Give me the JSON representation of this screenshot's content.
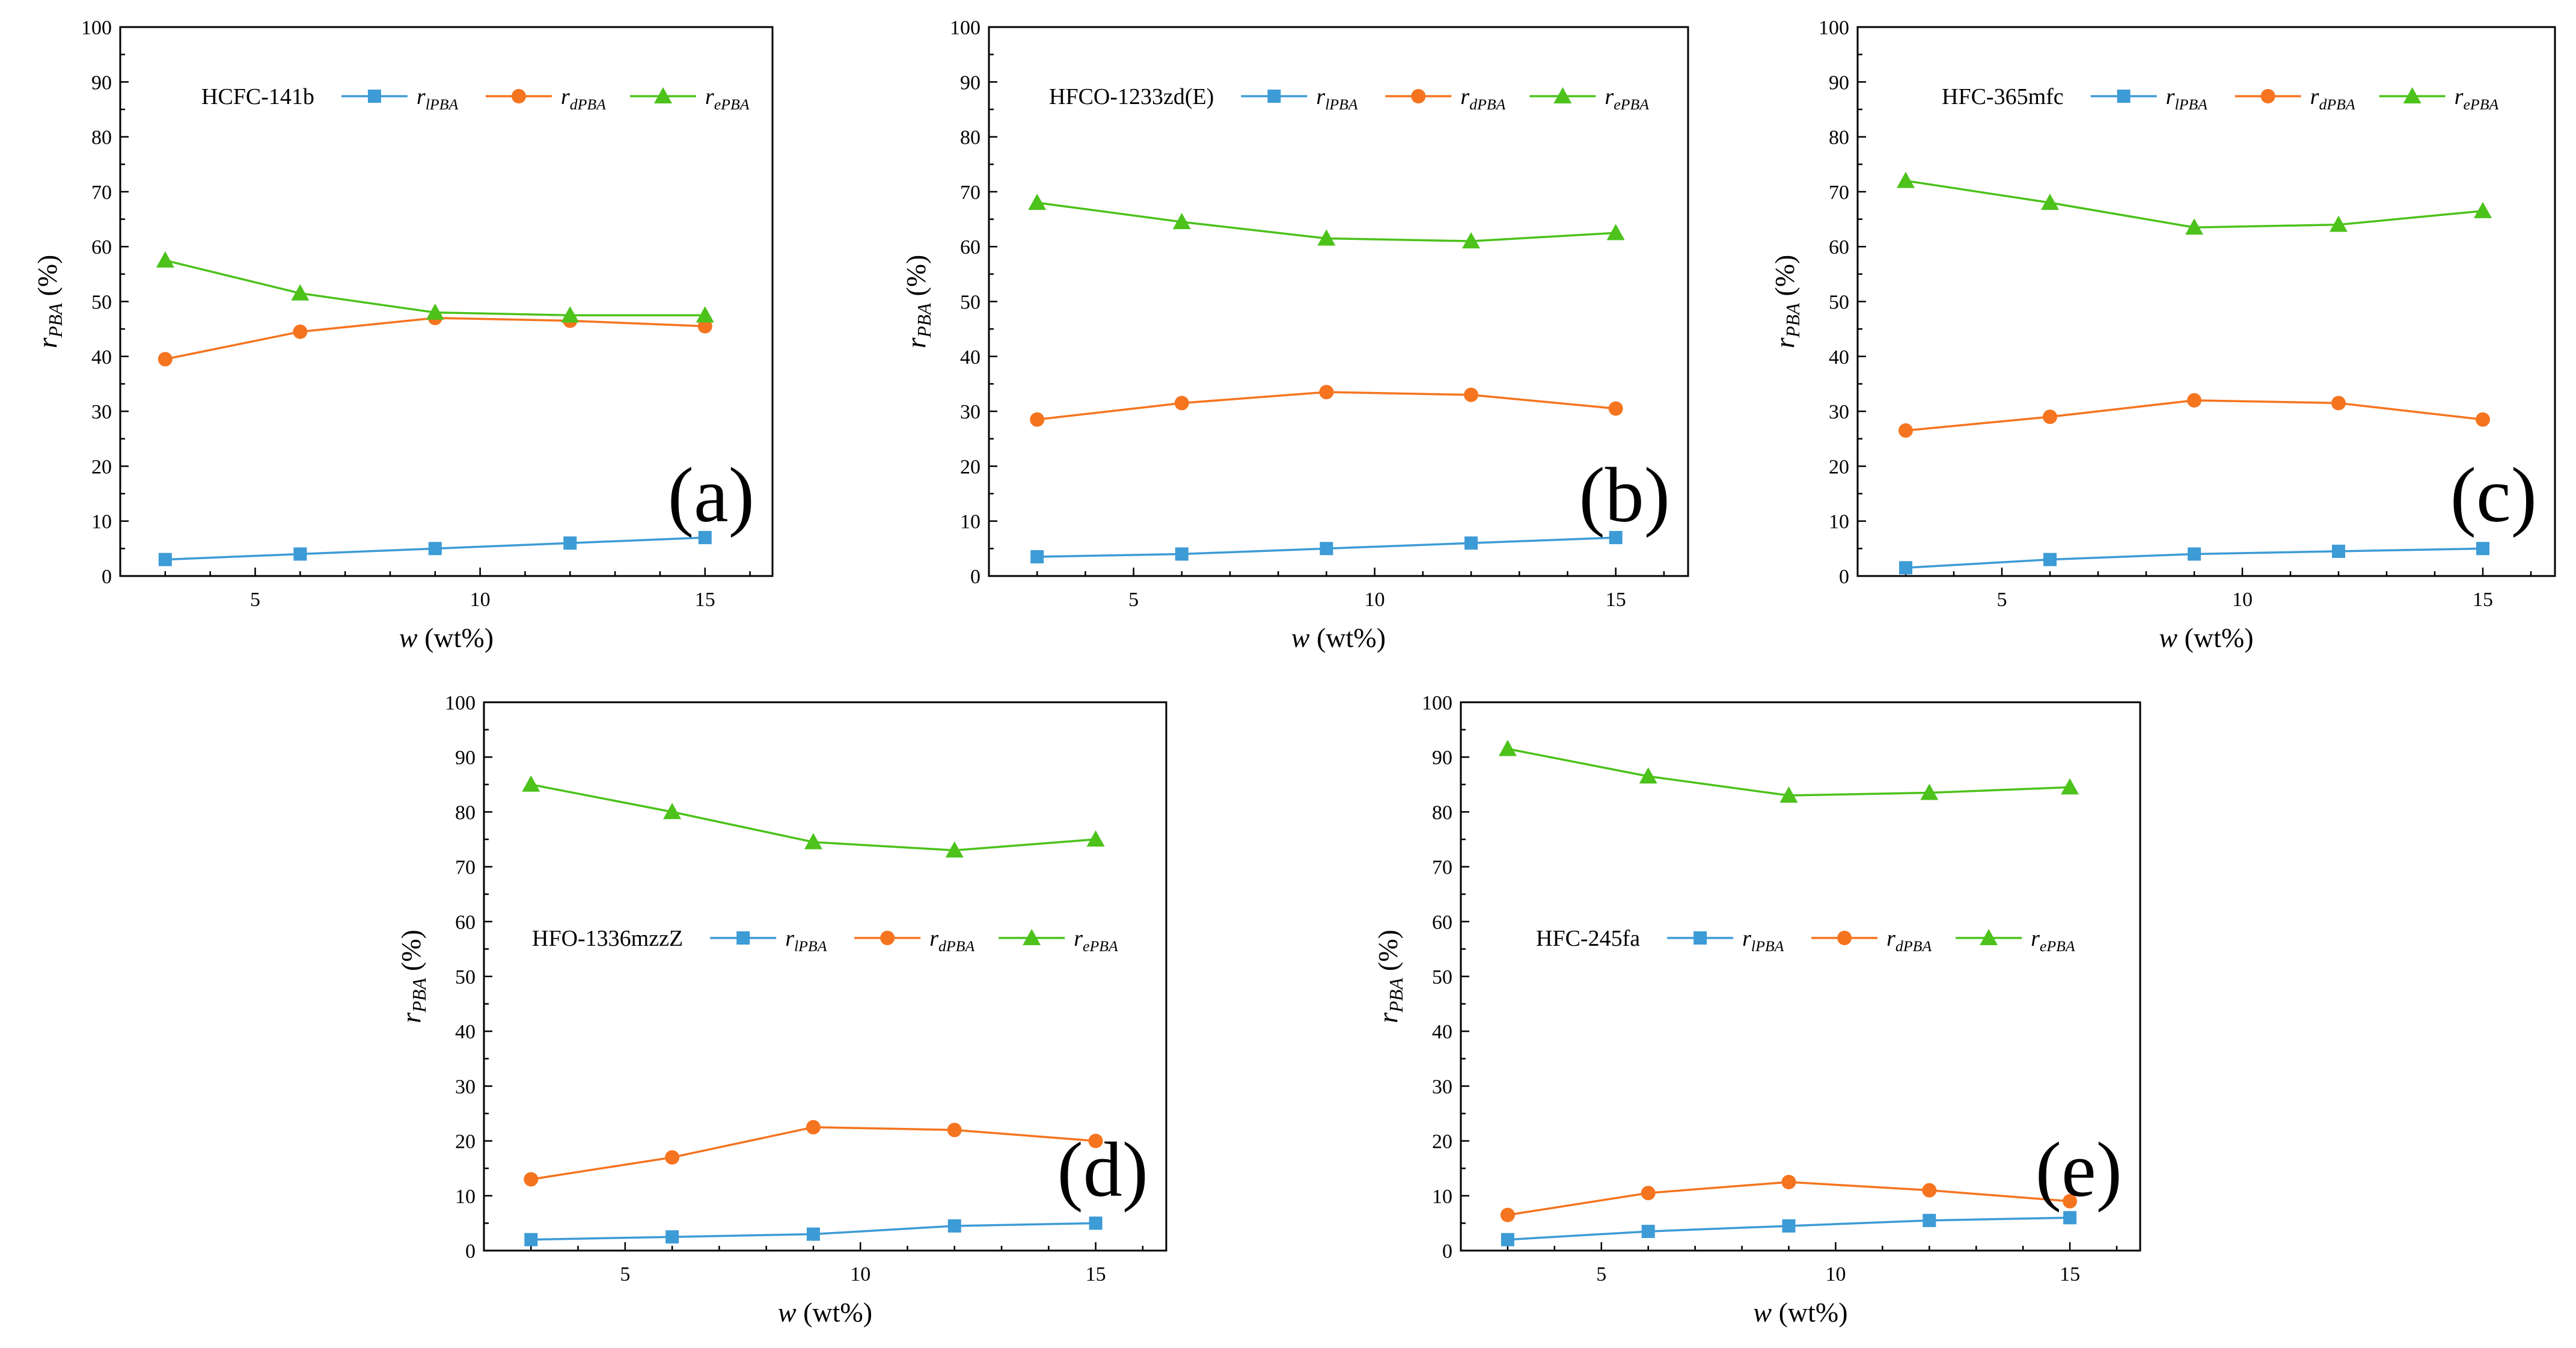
{
  "colors": {
    "l": "#3d9bd6",
    "d": "#f5741f",
    "e": "#4cc21b"
  },
  "legend_keys": {
    "l": {
      "var": "r",
      "sub": "lPBA"
    },
    "d": {
      "var": "r",
      "sub": "dPBA"
    },
    "e": {
      "var": "r",
      "sub": "ePBA"
    }
  },
  "chart_data": [
    {
      "type": "line",
      "panel_letter": "(a)",
      "legend_title": "HCFC-141b",
      "xlabel": {
        "var": "w",
        "unit": " (wt%)"
      },
      "ylabel": {
        "var": "r",
        "sub": "PBA",
        "unit": " (%)"
      },
      "xlim": [
        2,
        16.5
      ],
      "ylim": [
        0,
        100
      ],
      "xticks": [
        5,
        10,
        15
      ],
      "yticks": [
        0,
        10,
        20,
        30,
        40,
        50,
        60,
        70,
        80,
        90,
        100
      ],
      "x": [
        3,
        6,
        9,
        12,
        15
      ],
      "series": [
        {
          "key": "l",
          "marker": "square",
          "values": [
            3,
            4,
            5,
            6,
            7
          ]
        },
        {
          "key": "d",
          "marker": "circle",
          "values": [
            39.5,
            44.5,
            47,
            46.5,
            45.5
          ]
        },
        {
          "key": "e",
          "marker": "triangle",
          "values": [
            57.5,
            51.5,
            48,
            47.5,
            47.5
          ]
        }
      ]
    },
    {
      "type": "line",
      "panel_letter": "(b)",
      "legend_title": "HFCO-1233zd(E)",
      "xlabel": {
        "var": "w",
        "unit": " (wt%)"
      },
      "ylabel": {
        "var": "r",
        "sub": "PBA",
        "unit": " (%)"
      },
      "xlim": [
        2,
        16.5
      ],
      "ylim": [
        0,
        100
      ],
      "xticks": [
        5,
        10,
        15
      ],
      "yticks": [
        0,
        10,
        20,
        30,
        40,
        50,
        60,
        70,
        80,
        90,
        100
      ],
      "x": [
        3,
        6,
        9,
        12,
        15
      ],
      "series": [
        {
          "key": "l",
          "marker": "square",
          "values": [
            3.5,
            4,
            5,
            6,
            7
          ]
        },
        {
          "key": "d",
          "marker": "circle",
          "values": [
            28.5,
            31.5,
            33.5,
            33,
            30.5
          ]
        },
        {
          "key": "e",
          "marker": "triangle",
          "values": [
            68,
            64.5,
            61.5,
            61,
            62.5
          ]
        }
      ]
    },
    {
      "type": "line",
      "panel_letter": "(c)",
      "legend_title": "HFC-365mfc",
      "xlabel": {
        "var": "w",
        "unit": " (wt%)"
      },
      "ylabel": {
        "var": "r",
        "sub": "PBA",
        "unit": " (%)"
      },
      "xlim": [
        2,
        16.5
      ],
      "ylim": [
        0,
        100
      ],
      "xticks": [
        5,
        10,
        15
      ],
      "yticks": [
        0,
        10,
        20,
        30,
        40,
        50,
        60,
        70,
        80,
        90,
        100
      ],
      "x": [
        3,
        6,
        9,
        12,
        15
      ],
      "series": [
        {
          "key": "l",
          "marker": "square",
          "values": [
            1.5,
            3,
            4,
            4.5,
            5
          ]
        },
        {
          "key": "d",
          "marker": "circle",
          "values": [
            26.5,
            29,
            32,
            31.5,
            28.5
          ]
        },
        {
          "key": "e",
          "marker": "triangle",
          "values": [
            72,
            68,
            63.5,
            64,
            66.5
          ]
        }
      ]
    },
    {
      "type": "line",
      "panel_letter": "(d)",
      "legend_title": "HFO-1336mzzZ",
      "xlabel": {
        "var": "w",
        "unit": " (wt%)"
      },
      "ylabel": {
        "var": "r",
        "sub": "PBA",
        "unit": " (%)"
      },
      "xlim": [
        2,
        16.5
      ],
      "ylim": [
        0,
        100
      ],
      "xticks": [
        5,
        10,
        15
      ],
      "yticks": [
        0,
        10,
        20,
        30,
        40,
        50,
        60,
        70,
        80,
        90,
        100
      ],
      "x": [
        3,
        6,
        9,
        12,
        15
      ],
      "series": [
        {
          "key": "l",
          "marker": "square",
          "values": [
            2,
            2.5,
            3,
            4.5,
            5
          ]
        },
        {
          "key": "d",
          "marker": "circle",
          "values": [
            13,
            17,
            22.5,
            22,
            20
          ]
        },
        {
          "key": "e",
          "marker": "triangle",
          "values": [
            85,
            80,
            74.5,
            73,
            75
          ]
        }
      ]
    },
    {
      "type": "line",
      "panel_letter": "(e)",
      "legend_title": "HFC-245fa",
      "xlabel": {
        "var": "w",
        "unit": " (wt%)"
      },
      "ylabel": {
        "var": "r",
        "sub": "PBA",
        "unit": " (%)"
      },
      "xlim": [
        2,
        16.5
      ],
      "ylim": [
        0,
        100
      ],
      "xticks": [
        5,
        10,
        15
      ],
      "yticks": [
        0,
        10,
        20,
        30,
        40,
        50,
        60,
        70,
        80,
        90,
        100
      ],
      "x": [
        3,
        6,
        9,
        12,
        15
      ],
      "series": [
        {
          "key": "l",
          "marker": "square",
          "values": [
            2,
            3.5,
            4.5,
            5.5,
            6
          ]
        },
        {
          "key": "d",
          "marker": "circle",
          "values": [
            6.5,
            10.5,
            12.5,
            11,
            9
          ]
        },
        {
          "key": "e",
          "marker": "triangle",
          "values": [
            91.5,
            86.5,
            83,
            83.5,
            84.5
          ]
        }
      ]
    }
  ]
}
